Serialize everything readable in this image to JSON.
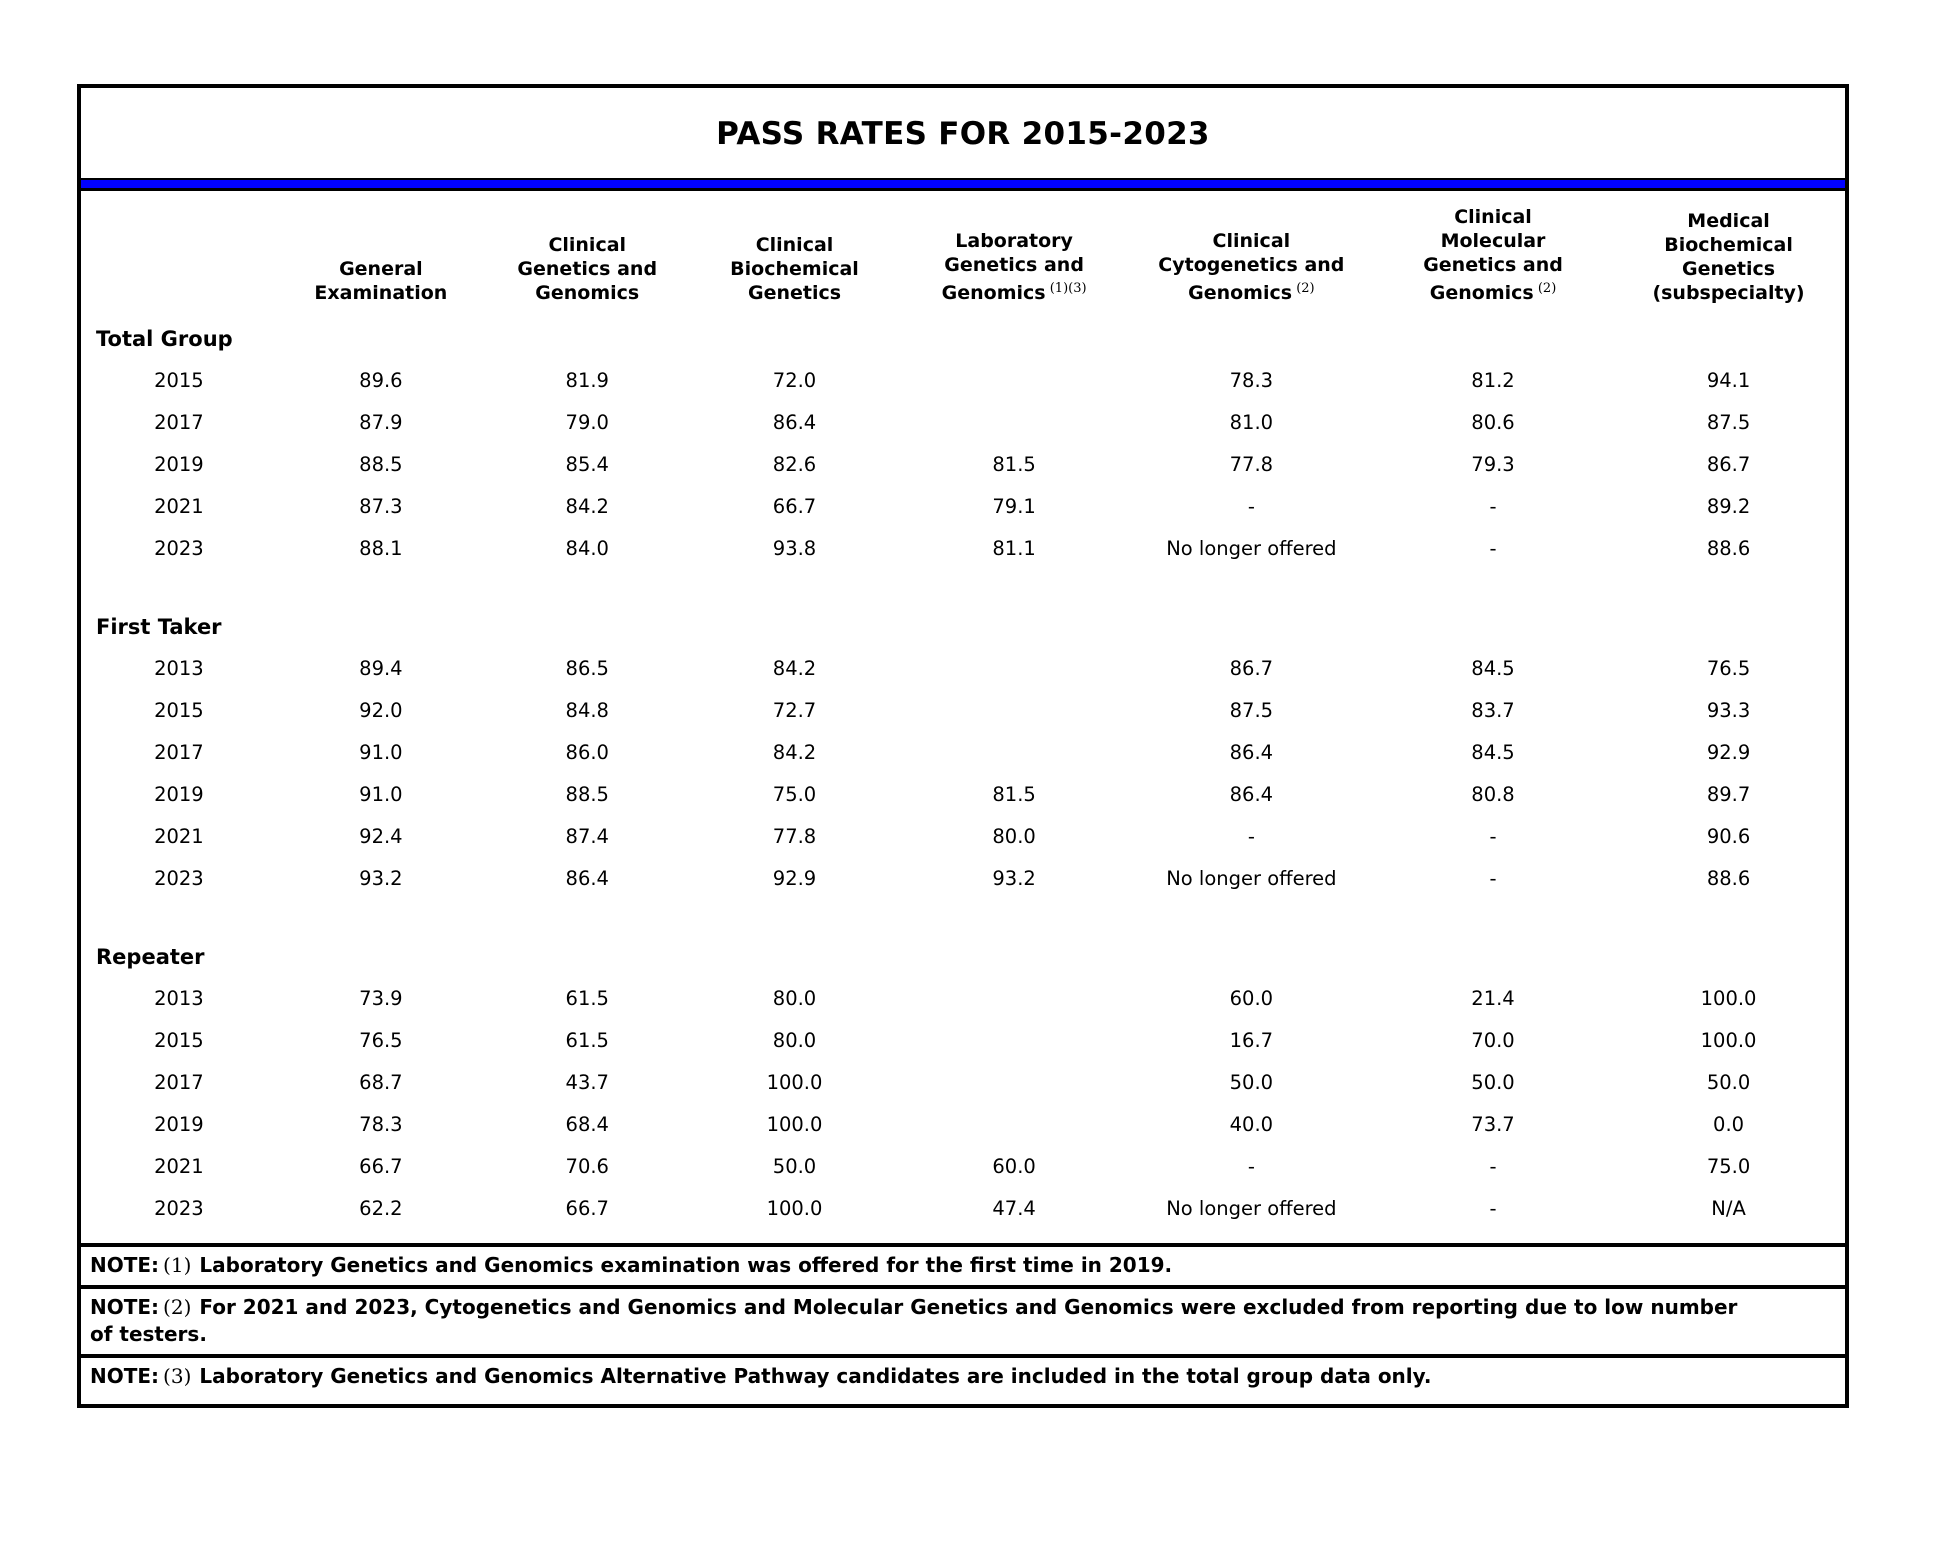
{
  "title": "PASS RATES FOR 2015-2023",
  "colors": {
    "divider_blue": "#0101ff",
    "border_black": "#000000",
    "text": "#000000",
    "background": "#ffffff"
  },
  "table": {
    "columns": [
      {
        "lines": [
          "General",
          "Examination"
        ],
        "sup": ""
      },
      {
        "lines": [
          "Clinical",
          "Genetics and",
          "Genomics"
        ],
        "sup": ""
      },
      {
        "lines": [
          "Clinical",
          "Biochemical",
          "Genetics"
        ],
        "sup": ""
      },
      {
        "lines": [
          "Laboratory",
          "Genetics and",
          "Genomics"
        ],
        "sup": "(1)(3)"
      },
      {
        "lines": [
          "Clinical",
          "Cytogenetics and",
          "Genomics"
        ],
        "sup": "(2)"
      },
      {
        "lines": [
          "Clinical",
          "Molecular",
          "Genetics and",
          "Genomics"
        ],
        "sup": "(2)"
      },
      {
        "lines": [
          "Medical",
          "Biochemical",
          "Genetics",
          "(subspecialty)"
        ],
        "sup": ""
      }
    ],
    "sections": [
      {
        "label": "Total Group",
        "rows": [
          {
            "year": "2015",
            "values": [
              "89.6",
              "81.9",
              "72.0",
              "",
              "78.3",
              "81.2",
              "94.1"
            ]
          },
          {
            "year": "2017",
            "values": [
              "87.9",
              "79.0",
              "86.4",
              "",
              "81.0",
              "80.6",
              "87.5"
            ]
          },
          {
            "year": "2019",
            "values": [
              "88.5",
              "85.4",
              "82.6",
              "81.5",
              "77.8",
              "79.3",
              "86.7"
            ]
          },
          {
            "year": "2021",
            "values": [
              "87.3",
              "84.2",
              "66.7",
              "79.1",
              "-",
              "-",
              "89.2"
            ]
          },
          {
            "year": "2023",
            "values": [
              "88.1",
              "84.0",
              "93.8",
              "81.1",
              "No longer offered",
              "-",
              "88.6"
            ]
          }
        ]
      },
      {
        "label": "First Taker",
        "rows": [
          {
            "year": "2013",
            "values": [
              "89.4",
              "86.5",
              "84.2",
              "",
              "86.7",
              "84.5",
              "76.5"
            ]
          },
          {
            "year": "2015",
            "values": [
              "92.0",
              "84.8",
              "72.7",
              "",
              "87.5",
              "83.7",
              "93.3"
            ]
          },
          {
            "year": "2017",
            "values": [
              "91.0",
              "86.0",
              "84.2",
              "",
              "86.4",
              "84.5",
              "92.9"
            ]
          },
          {
            "year": "2019",
            "values": [
              "91.0",
              "88.5",
              "75.0",
              "81.5",
              "86.4",
              "80.8",
              "89.7"
            ]
          },
          {
            "year": "2021",
            "values": [
              "92.4",
              "87.4",
              "77.8",
              "80.0",
              "-",
              "-",
              "90.6"
            ]
          },
          {
            "year": "2023",
            "values": [
              "93.2",
              "86.4",
              "92.9",
              "93.2",
              "No longer offered",
              "-",
              "88.6"
            ]
          }
        ]
      },
      {
        "label": "Repeater",
        "rows": [
          {
            "year": "2013",
            "values": [
              "73.9",
              "61.5",
              "80.0",
              "",
              "60.0",
              "21.4",
              "100.0"
            ]
          },
          {
            "year": "2015",
            "values": [
              "76.5",
              "61.5",
              "80.0",
              "",
              "16.7",
              "70.0",
              "100.0"
            ]
          },
          {
            "year": "2017",
            "values": [
              "68.7",
              "43.7",
              "100.0",
              "",
              "50.0",
              "50.0",
              "50.0"
            ]
          },
          {
            "year": "2019",
            "values": [
              "78.3",
              "68.4",
              "100.0",
              "",
              "40.0",
              "73.7",
              "0.0"
            ]
          },
          {
            "year": "2021",
            "values": [
              "66.7",
              "70.6",
              "50.0",
              "60.0",
              "-",
              "-",
              "75.0"
            ]
          },
          {
            "year": "2023",
            "values": [
              "62.2",
              "66.7",
              "100.0",
              "47.4",
              "No longer offered",
              "-",
              "N/A"
            ]
          }
        ]
      }
    ]
  },
  "notes": [
    {
      "prefix": "NOTE:",
      "num": "(1)",
      "text": "Laboratory Genetics and Genomics examination was offered for the first time in 2019."
    },
    {
      "prefix": "NOTE:",
      "num": "(2)",
      "text": "For 2021 and 2023, Cytogenetics and Genomics and Molecular Genetics and Genomics were excluded from reporting due to low number of testers."
    },
    {
      "prefix": "NOTE:",
      "num": "(3)",
      "text": "Laboratory Genetics and Genomics Alternative Pathway candidates are included in the total group data only."
    }
  ]
}
